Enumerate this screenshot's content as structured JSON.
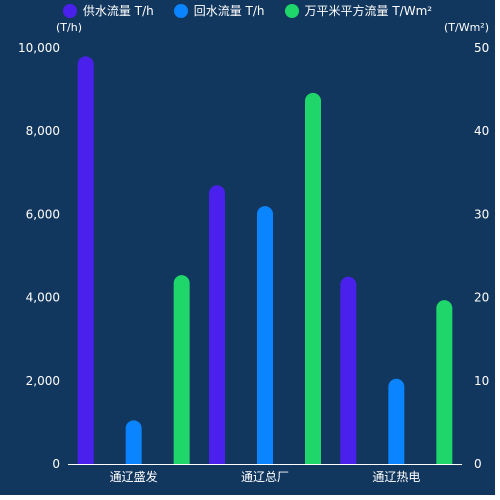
{
  "chart_data": {
    "type": "bar",
    "categories": [
      "通辽盛发",
      "通辽总厂",
      "通辽热电"
    ],
    "series": [
      {
        "name": "供水流量 T/h",
        "axis": "left",
        "color": "#4a20ec",
        "values": [
          9800,
          6700,
          4500
        ]
      },
      {
        "name": "回水流量 T/h",
        "axis": "left",
        "color": "#0a84ff",
        "values": [
          1050,
          6200,
          2050
        ]
      },
      {
        "name": "万平米平方流量 T/Wm²",
        "axis": "right",
        "color": "#1fd66b",
        "values": [
          22.7,
          44.6,
          19.7
        ]
      }
    ],
    "y_left": {
      "unit": "(T/h)",
      "min": 0,
      "max": 10000,
      "ticks": [
        "0",
        "2,000",
        "4,000",
        "6,000",
        "8,000",
        "10,000"
      ]
    },
    "y_right": {
      "unit": "(T/Wm²)",
      "min": 0,
      "max": 50,
      "ticks": [
        "0",
        "10",
        "20",
        "30",
        "40",
        "50"
      ]
    },
    "grid": false,
    "legend_position": "top-center"
  },
  "colors": {
    "background": "#12375e",
    "text": "#ffffff",
    "axis": "#ffffff"
  }
}
